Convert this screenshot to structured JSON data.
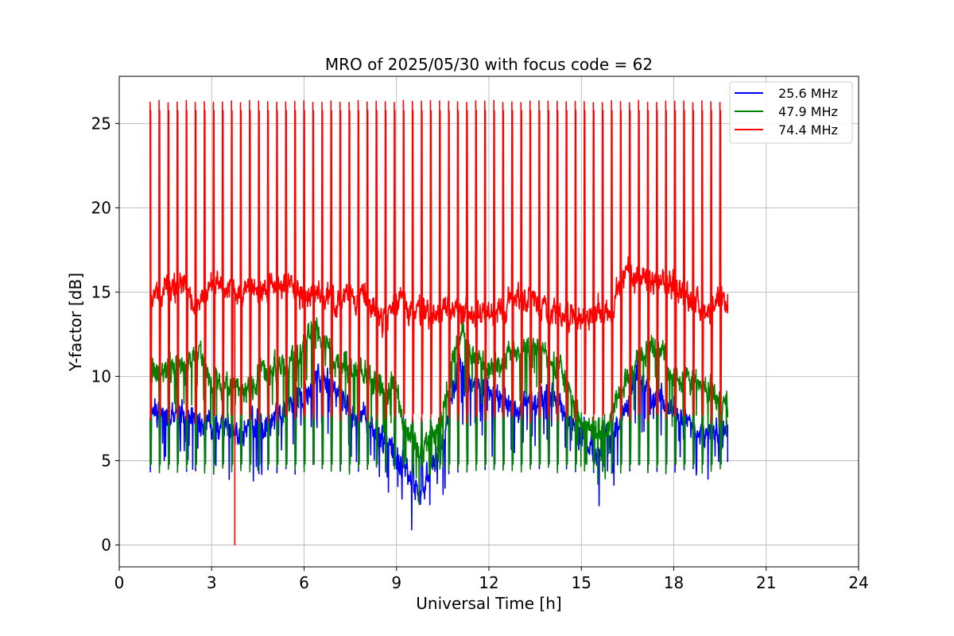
{
  "chart_data": {
    "type": "line",
    "title": "MRO of 2025/05/30 with focus code = 62",
    "xlabel": "Universal Time [h]",
    "ylabel": "Y-factor [dB]",
    "xlim": [
      0,
      24
    ],
    "ylim": [
      -1.3,
      27.8
    ],
    "xticks": [
      0,
      3,
      6,
      9,
      12,
      15,
      18,
      21,
      24
    ],
    "yticks": [
      0,
      5,
      10,
      15,
      20,
      25
    ],
    "grid": true,
    "legend_position": "top-right",
    "x_range_data": [
      1.0,
      19.75
    ],
    "calibration_spike_count": 64,
    "series": [
      {
        "name": "25.6 MHz",
        "color": "#0000ff",
        "spike_peak": 7.5,
        "spike_min": 4.5,
        "baseline_profile": [
          [
            1.0,
            8.0
          ],
          [
            2.0,
            7.8
          ],
          [
            3.0,
            7.0
          ],
          [
            4.0,
            6.8
          ],
          [
            5.0,
            7.5
          ],
          [
            6.0,
            9.0
          ],
          [
            6.6,
            10.0
          ],
          [
            7.5,
            8.0
          ],
          [
            8.5,
            6.5
          ],
          [
            9.3,
            4.5
          ],
          [
            9.8,
            3.0
          ],
          [
            10.5,
            6.0
          ],
          [
            11.0,
            10.5
          ],
          [
            12.0,
            9.0
          ],
          [
            13.0,
            8.0
          ],
          [
            14.0,
            9.0
          ],
          [
            14.8,
            7.0
          ],
          [
            15.5,
            5.5
          ],
          [
            16.0,
            6.0
          ],
          [
            16.8,
            10.5
          ],
          [
            17.5,
            8.5
          ],
          [
            18.0,
            8.0
          ],
          [
            19.0,
            6.5
          ],
          [
            19.7,
            7.0
          ]
        ]
      },
      {
        "name": "47.9 MHz",
        "color": "#008000",
        "spike_peak": 7.5,
        "spike_min": 4.5,
        "baseline_profile": [
          [
            1.0,
            10.3
          ],
          [
            2.0,
            10.5
          ],
          [
            2.6,
            11.5
          ],
          [
            3.0,
            9.5
          ],
          [
            4.0,
            9.2
          ],
          [
            5.0,
            10.5
          ],
          [
            6.0,
            11.5
          ],
          [
            6.3,
            13.0
          ],
          [
            7.0,
            11.0
          ],
          [
            8.0,
            10.0
          ],
          [
            9.0,
            9.0
          ],
          [
            9.5,
            6.0
          ],
          [
            10.0,
            5.5
          ],
          [
            10.5,
            8.0
          ],
          [
            11.0,
            12.5
          ],
          [
            12.0,
            10.5
          ],
          [
            13.0,
            11.5
          ],
          [
            13.5,
            12.0
          ],
          [
            14.5,
            10.0
          ],
          [
            15.0,
            7.0
          ],
          [
            15.5,
            6.5
          ],
          [
            16.0,
            8.0
          ],
          [
            17.0,
            11.5
          ],
          [
            17.5,
            12.0
          ],
          [
            18.0,
            10.0
          ],
          [
            19.0,
            9.5
          ],
          [
            19.7,
            8.2
          ]
        ]
      },
      {
        "name": "74.4 MHz",
        "color": "#ff0000",
        "spike_peak": 26.3,
        "spike_min": 7.5,
        "baseline_profile": [
          [
            1.0,
            14.8
          ],
          [
            2.0,
            15.5
          ],
          [
            2.5,
            14.0
          ],
          [
            3.0,
            15.5
          ],
          [
            4.0,
            15.0
          ],
          [
            5.0,
            15.5
          ],
          [
            6.0,
            15.0
          ],
          [
            7.0,
            14.5
          ],
          [
            8.0,
            15.0
          ],
          [
            8.5,
            13.0
          ],
          [
            9.0,
            14.5
          ],
          [
            10.0,
            13.5
          ],
          [
            11.0,
            14.0
          ],
          [
            12.0,
            13.5
          ],
          [
            13.0,
            15.0
          ],
          [
            14.0,
            14.0
          ],
          [
            15.0,
            13.5
          ],
          [
            16.0,
            14.0
          ],
          [
            16.5,
            16.5
          ],
          [
            17.0,
            15.5
          ],
          [
            18.0,
            15.5
          ],
          [
            19.0,
            14.0
          ],
          [
            19.7,
            14.2
          ]
        ]
      }
    ],
    "anomaly": {
      "series": "74.4 MHz",
      "x": 3.75,
      "y": 0.0
    }
  }
}
